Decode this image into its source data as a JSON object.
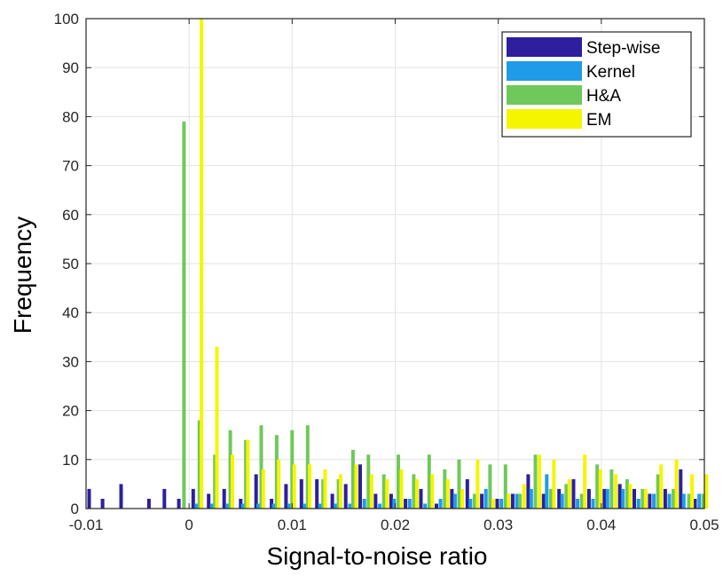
{
  "chart_data": {
    "type": "bar",
    "xlabel": "Signal-to-noise ratio",
    "ylabel": "Frequency",
    "xlim": [
      -0.01,
      0.05
    ],
    "ylim": [
      0,
      100
    ],
    "xticks": [
      -0.01,
      0,
      0.01,
      0.02,
      0.03,
      0.04,
      0.05
    ],
    "xtick_labels": [
      "-0.01",
      "0",
      "0.01",
      "0.02",
      "0.03",
      "0.04",
      "0.05"
    ],
    "yticks": [
      0,
      10,
      20,
      30,
      40,
      50,
      60,
      70,
      80,
      90,
      100
    ],
    "ytick_labels": [
      "0",
      "10",
      "20",
      "30",
      "40",
      "50",
      "60",
      "70",
      "80",
      "90",
      "100"
    ],
    "grid": true,
    "legend_position": "top-right",
    "series": [
      {
        "name": "Step-wise",
        "color": "#2d1f9e",
        "x": [
          -0.0097,
          -0.0084,
          -0.0066,
          -0.0039,
          -0.0024,
          -0.001,
          0.0004,
          0.0019,
          0.0034,
          0.005,
          0.0065,
          0.008,
          0.0094,
          0.0109,
          0.0124,
          0.0139,
          0.0152,
          0.0166,
          0.0181,
          0.0196,
          0.021,
          0.0225,
          0.024,
          0.0255,
          0.027,
          0.0284,
          0.0299,
          0.0314,
          0.0329,
          0.0344,
          0.0359,
          0.0373,
          0.0388,
          0.0403,
          0.0418,
          0.0432,
          0.0447,
          0.0462,
          0.0477,
          0.0491
        ],
        "values": [
          4,
          2,
          5,
          2,
          4,
          2,
          4,
          3,
          4,
          2,
          7,
          2,
          5,
          6,
          6,
          3,
          5,
          9,
          3,
          3,
          2,
          4,
          1,
          4,
          6,
          3,
          2,
          3,
          7,
          3,
          4,
          6,
          4,
          4,
          5,
          4,
          3,
          4,
          8,
          2
        ]
      },
      {
        "name": "Kernel",
        "color": "#1f9be8",
        "x": [
          0.0007,
          0.0022,
          0.0037,
          0.0052,
          0.0067,
          0.0082,
          0.0097,
          0.0112,
          0.0127,
          0.0142,
          0.0156,
          0.017,
          0.0185,
          0.0199,
          0.0214,
          0.0229,
          0.0244,
          0.0258,
          0.0273,
          0.0288,
          0.0303,
          0.0318,
          0.0332,
          0.0347,
          0.0362,
          0.0377,
          0.0392,
          0.0406,
          0.0421,
          0.0436,
          0.0451,
          0.0466,
          0.048,
          0.0495
        ],
        "values": [
          1,
          1,
          1,
          1,
          1,
          1,
          1,
          1,
          1,
          1,
          1,
          2,
          1,
          2,
          2,
          1,
          2,
          3,
          2,
          4,
          2,
          3,
          4,
          7,
          3,
          2,
          2,
          4,
          4,
          2,
          3,
          3,
          3,
          3
        ]
      },
      {
        "name": "H&A",
        "color": "#6fc95a",
        "x": [
          -0.0005,
          0.001,
          0.0025,
          0.004,
          0.0055,
          0.007,
          0.0085,
          0.01,
          0.0115,
          0.013,
          0.0145,
          0.0159,
          0.0174,
          0.0189,
          0.0203,
          0.0218,
          0.0233,
          0.0248,
          0.0262,
          0.0277,
          0.0292,
          0.0307,
          0.0321,
          0.0336,
          0.0351,
          0.0366,
          0.0381,
          0.0396,
          0.041,
          0.0425,
          0.044,
          0.0455,
          0.047,
          0.0485,
          0.0499
        ],
        "values": [
          79,
          18,
          11,
          16,
          14,
          17,
          15,
          16,
          17,
          6,
          6,
          12,
          11,
          7,
          11,
          7,
          11,
          8,
          10,
          3,
          9,
          9,
          3,
          11,
          4,
          5,
          3,
          9,
          8,
          6,
          4,
          7,
          4,
          3,
          3
        ]
      },
      {
        "name": "EM",
        "color": "#f5f500",
        "x": [
          0.0012,
          0.0027,
          0.0042,
          0.0057,
          0.0072,
          0.0087,
          0.0102,
          0.0117,
          0.0132,
          0.0147,
          0.0162,
          0.0177,
          0.0192,
          0.0206,
          0.0221,
          0.0236,
          0.0251,
          0.0265,
          0.028,
          0.0295,
          0.031,
          0.0325,
          0.034,
          0.0354,
          0.0369,
          0.0384,
          0.0399,
          0.0414,
          0.0428,
          0.0443,
          0.0458,
          0.0473,
          0.0488,
          0.0502
        ],
        "values": [
          100,
          33,
          11,
          14,
          8,
          10,
          9,
          9,
          8,
          7,
          9,
          7,
          6,
          8,
          6,
          7,
          6,
          4,
          10,
          2,
          3,
          5,
          11,
          10,
          6,
          11,
          8,
          7,
          5,
          4,
          9,
          10,
          7,
          7
        ]
      }
    ]
  }
}
